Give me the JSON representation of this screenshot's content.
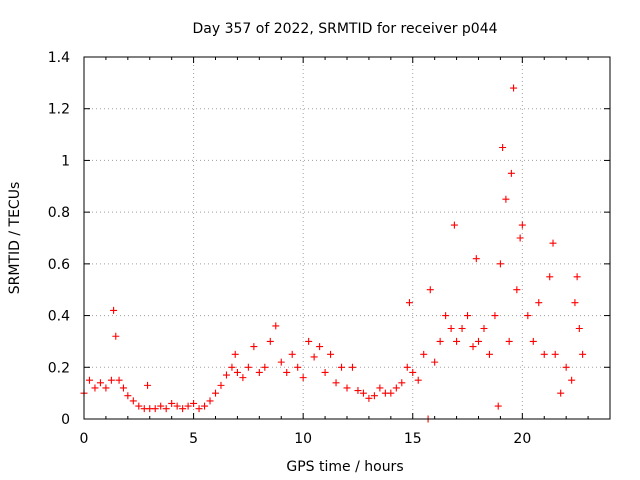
{
  "chart_data": {
    "type": "scatter",
    "title": "Day 357 of 2022, SRMTID for receiver p044",
    "xlabel": "GPS time / hours",
    "ylabel": "SRMTID / TECUs",
    "xlim": [
      0,
      24
    ],
    "ylim": [
      0,
      1.4
    ],
    "x_ticks": [
      0,
      5,
      10,
      15,
      20
    ],
    "x_tick_labels": [
      "0",
      "5",
      "10",
      "15",
      "20"
    ],
    "y_ticks": [
      0,
      0.2,
      0.4,
      0.6,
      0.8,
      1.0,
      1.2,
      1.4
    ],
    "y_tick_labels": [
      "0",
      "0.2",
      "0.4",
      "0.6",
      "0.8",
      "1",
      "1.2",
      "1.4"
    ],
    "grid": true,
    "marker": "+",
    "series": [
      {
        "name": "SRMTID",
        "color": "#ff0000",
        "x": [
          0.0,
          0.25,
          0.5,
          0.75,
          1.0,
          1.25,
          1.35,
          1.45,
          1.6,
          1.8,
          2.0,
          2.25,
          2.5,
          2.75,
          2.9,
          3.0,
          3.25,
          3.5,
          3.75,
          4.0,
          4.25,
          4.5,
          4.75,
          5.0,
          5.25,
          5.5,
          5.75,
          6.0,
          6.25,
          6.5,
          6.75,
          6.9,
          7.0,
          7.25,
          7.5,
          7.75,
          8.0,
          8.25,
          8.5,
          8.75,
          9.0,
          9.25,
          9.5,
          9.75,
          10.0,
          10.25,
          10.5,
          10.75,
          11.0,
          11.25,
          11.5,
          11.75,
          12.0,
          12.25,
          12.5,
          12.75,
          13.0,
          13.25,
          13.5,
          13.75,
          14.0,
          14.25,
          14.5,
          14.75,
          14.85,
          15.0,
          15.25,
          15.5,
          15.7,
          15.8,
          16.0,
          16.25,
          16.5,
          16.75,
          16.9,
          17.0,
          17.25,
          17.5,
          17.75,
          17.9,
          18.0,
          18.25,
          18.5,
          18.75,
          18.9,
          19.0,
          19.1,
          19.25,
          19.4,
          19.5,
          19.6,
          19.75,
          19.9,
          20.0,
          20.25,
          20.5,
          20.75,
          21.0,
          21.25,
          21.4,
          21.5,
          21.75,
          22.0,
          22.25,
          22.4,
          22.5,
          22.6,
          22.75
        ],
        "y": [
          0.1,
          0.15,
          0.12,
          0.14,
          0.12,
          0.15,
          0.42,
          0.32,
          0.15,
          0.12,
          0.09,
          0.07,
          0.05,
          0.04,
          0.13,
          0.04,
          0.04,
          0.05,
          0.04,
          0.06,
          0.05,
          0.04,
          0.05,
          0.06,
          0.04,
          0.05,
          0.07,
          0.1,
          0.13,
          0.17,
          0.2,
          0.25,
          0.18,
          0.16,
          0.2,
          0.28,
          0.18,
          0.2,
          0.3,
          0.36,
          0.22,
          0.18,
          0.25,
          0.2,
          0.16,
          0.3,
          0.24,
          0.28,
          0.18,
          0.25,
          0.14,
          0.2,
          0.12,
          0.2,
          0.11,
          0.1,
          0.08,
          0.09,
          0.12,
          0.1,
          0.1,
          0.12,
          0.14,
          0.2,
          0.45,
          0.18,
          0.15,
          0.25,
          0.0,
          0.5,
          0.22,
          0.3,
          0.4,
          0.35,
          0.75,
          0.3,
          0.35,
          0.4,
          0.28,
          0.62,
          0.3,
          0.35,
          0.25,
          0.4,
          0.05,
          0.6,
          1.05,
          0.85,
          0.3,
          0.95,
          1.28,
          0.5,
          0.7,
          0.75,
          0.4,
          0.3,
          0.45,
          0.25,
          0.55,
          0.68,
          0.25,
          0.1,
          0.2,
          0.15,
          0.45,
          0.55,
          0.35,
          0.25
        ]
      }
    ]
  }
}
